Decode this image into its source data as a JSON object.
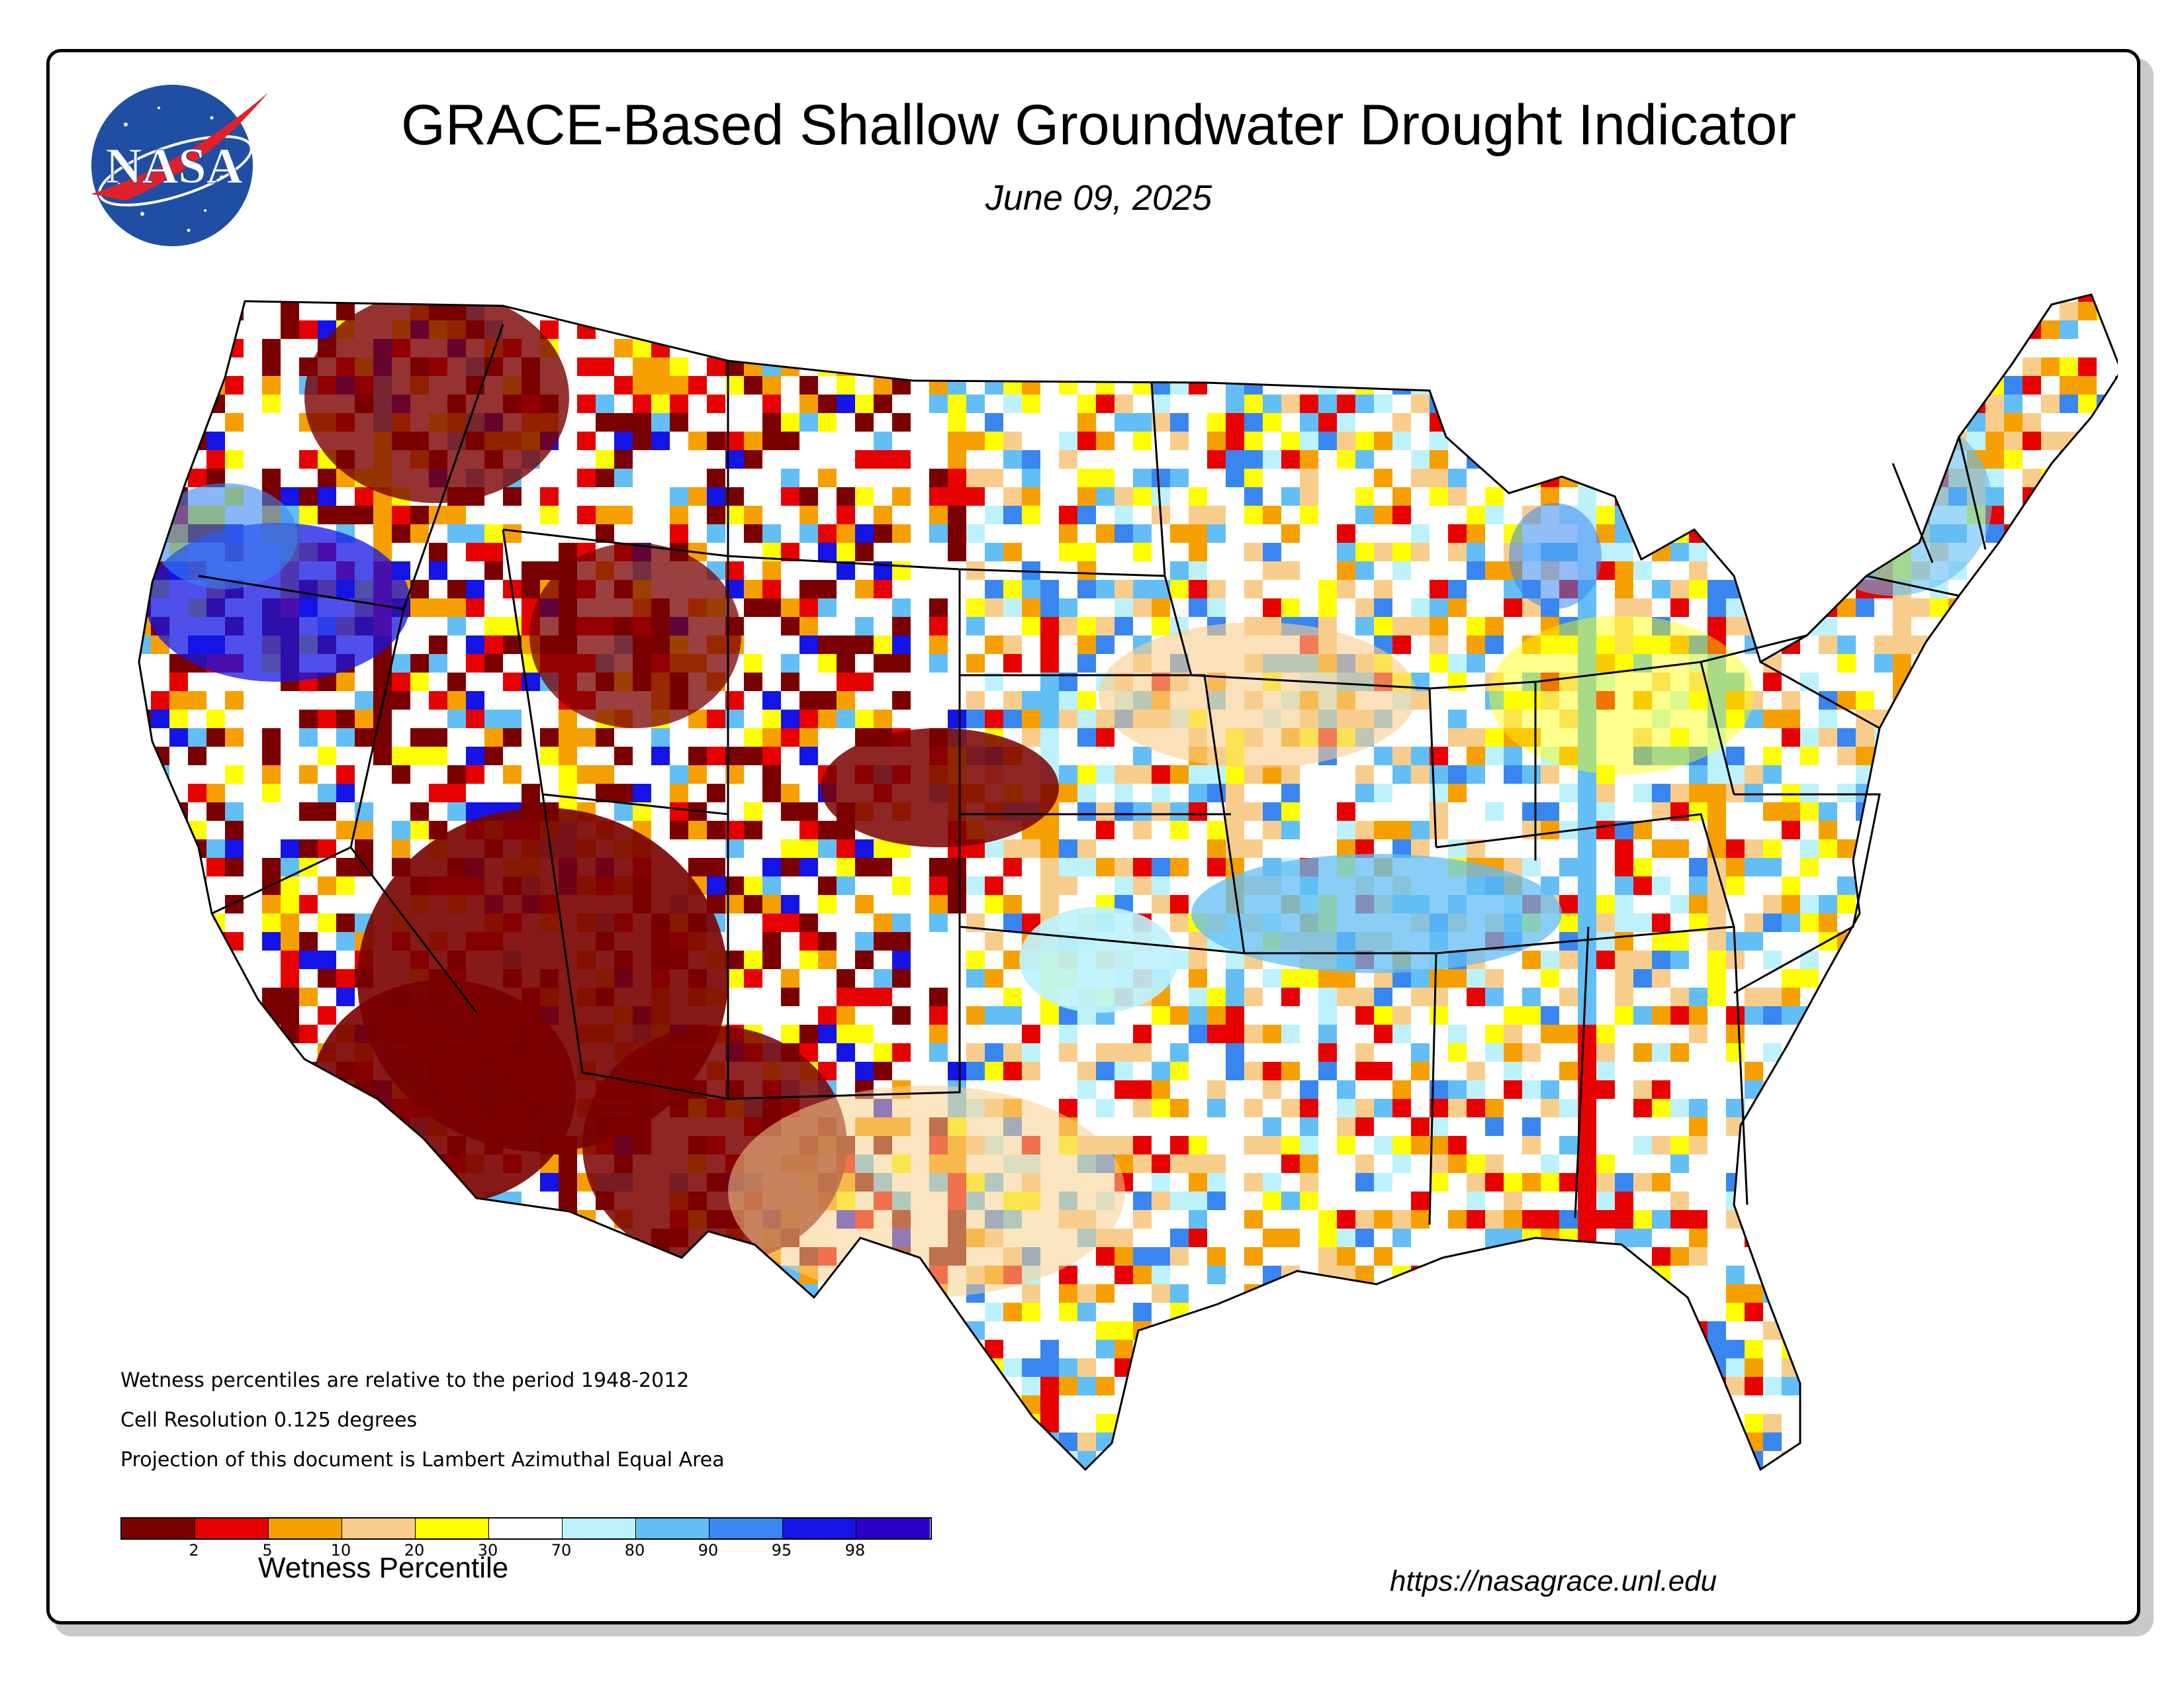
{
  "header": {
    "title": "GRACE-Based Shallow Groundwater Drought Indicator",
    "date": "June 09, 2025"
  },
  "logo": {
    "name": "nasa-meatball-logo",
    "text": "NASA",
    "colors": {
      "circle": "#1f4ea3",
      "chevron": "#e0202a"
    }
  },
  "notes": [
    "Wetness percentiles are relative to the period 1948-2012",
    "Cell Resolution 0.125 degrees",
    "Projection of this document is Lambert Azimuthal Equal Area"
  ],
  "legend": {
    "title": "Wetness Percentile",
    "colors": [
      "#7a0000",
      "#e60000",
      "#f5a000",
      "#f8cd8c",
      "#ffff00",
      "#ffffff",
      "#bdf2fc",
      "#63bef5",
      "#3a86f0",
      "#1414e6",
      "#2a00c8"
    ],
    "ticks": [
      "2",
      "5",
      "10",
      "20",
      "30",
      "70",
      "80",
      "90",
      "95",
      "98"
    ]
  },
  "source": {
    "url": "https://nasagrace.unl.edu"
  }
}
